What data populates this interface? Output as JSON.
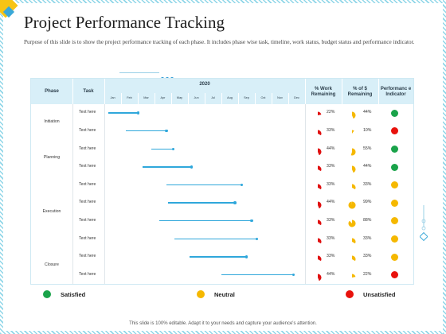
{
  "title": "Project Performance Tracking",
  "description": "Purpose of this slide is to show the project performance tracking of each phase. It includes phase wise task, timeline, work status, budget status and performance indicator.",
  "table": {
    "headers": {
      "phase": "Phase",
      "task": "Task",
      "year": "2020",
      "work": "% Work Remaining",
      "money": "% of $ Remaining",
      "indicator": "Performanc e Indicator"
    },
    "months": [
      "Jan",
      "Feb",
      "Mar",
      "Apr",
      "May",
      "Jun",
      "Jul",
      "Aug",
      "Sep",
      "Oct",
      "Nov",
      "Dec"
    ],
    "phases": [
      {
        "name": "Initiation",
        "rows": [
          0,
          1
        ]
      },
      {
        "name": "Planning",
        "rows": [
          2,
          3
        ]
      },
      {
        "name": "Execution",
        "rows": [
          4,
          5,
          6,
          7
        ]
      },
      {
        "name": "Closure",
        "rows": [
          8,
          9
        ]
      }
    ],
    "rows": [
      {
        "task": "Text here",
        "start_month": 0.25,
        "end_month": 2.0,
        "work_pct": 22,
        "money_pct": 44,
        "indicator": "satisfied"
      },
      {
        "task": "Text here",
        "start_month": 1.3,
        "end_month": 3.7,
        "work_pct": 33,
        "money_pct": 10,
        "indicator": "unsatisfied"
      },
      {
        "task": "Text here",
        "start_month": 2.8,
        "end_month": 4.1,
        "work_pct": 44,
        "money_pct": 55,
        "indicator": "satisfied"
      },
      {
        "task": "Text here",
        "start_month": 2.3,
        "end_month": 5.2,
        "work_pct": 33,
        "money_pct": 44,
        "indicator": "satisfied"
      },
      {
        "task": "Text here",
        "start_month": 3.7,
        "end_month": 8.2,
        "work_pct": 33,
        "money_pct": 33,
        "indicator": "neutral"
      },
      {
        "task": "Text here",
        "start_month": 3.8,
        "end_month": 7.8,
        "work_pct": 44,
        "money_pct": 99,
        "indicator": "neutral"
      },
      {
        "task": "Text here",
        "start_month": 3.3,
        "end_month": 8.8,
        "work_pct": 33,
        "money_pct": 88,
        "indicator": "neutral"
      },
      {
        "task": "Text here",
        "start_month": 4.2,
        "end_month": 9.1,
        "work_pct": 33,
        "money_pct": 33,
        "indicator": "neutral"
      },
      {
        "task": "Text here",
        "start_month": 5.1,
        "end_month": 8.5,
        "work_pct": 33,
        "money_pct": 33,
        "indicator": "neutral"
      },
      {
        "task": "Text here",
        "start_month": 7.0,
        "end_month": 11.3,
        "work_pct": 44,
        "money_pct": 22,
        "indicator": "unsatisfied"
      }
    ]
  },
  "colors": {
    "satisfied": "#1aa34a",
    "neutral": "#f5b800",
    "unsatisfied": "#e8120c",
    "work_pie": "#e01010",
    "money_pie": "#f5b800",
    "bar": "#2fa7db",
    "header_bg": "#d8eff8"
  },
  "legend": {
    "satisfied": "Satisfied",
    "neutral": "Neutral",
    "unsatisfied": "Unsatisfied"
  },
  "footer": "This slide is 100% editable. Adapt it to your needs and capture your audience's attention."
}
